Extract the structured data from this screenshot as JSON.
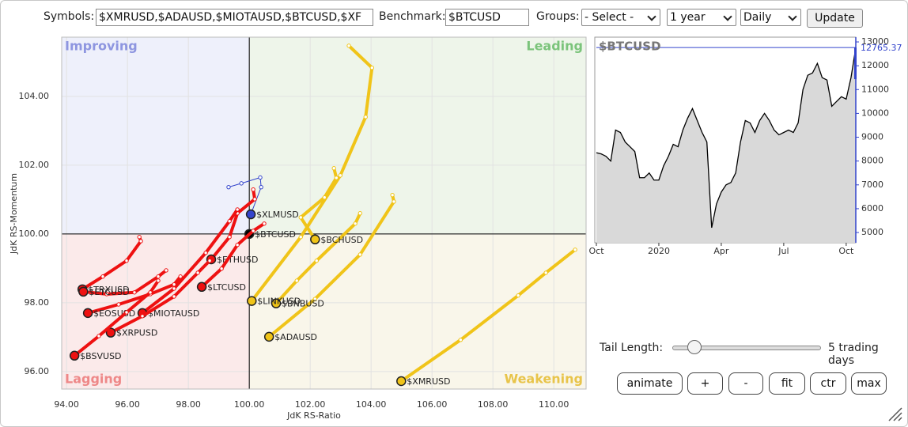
{
  "toolbar": {
    "symbols_label": "Symbols:",
    "symbols": "$XMRUSD,$ADAUSD,$MIOTAUSD,$BTCUSD,$XF",
    "benchmark_label": "Benchmark:",
    "benchmark": "$BTCUSD",
    "groups_label": "Groups:",
    "groups": "- Select -",
    "period": "1 year",
    "interval": "Daily",
    "update": "Update"
  },
  "chart_data": [
    {
      "type": "scatter",
      "x_label": "JdK RS-Ratio",
      "y_label": "JdK RS-Momentum",
      "quadrants": {
        "improving": "Improving",
        "leading": "Leading",
        "lagging": "Lagging",
        "weakening": "Weakening"
      },
      "xlim": [
        93.84,
        111.06
      ],
      "ylim": [
        95.49,
        105.72
      ],
      "xticks": [
        {
          "value": 94,
          "label": "94.00"
        },
        {
          "value": 96,
          "label": "96.00"
        },
        {
          "value": 98,
          "label": "98.00"
        },
        {
          "value": 100,
          "label": "100.00"
        },
        {
          "value": 102,
          "label": "102.00"
        },
        {
          "value": 104,
          "label": "104.00"
        },
        {
          "value": 106,
          "label": "106.00"
        },
        {
          "value": 108,
          "label": "108.00"
        },
        {
          "value": 110,
          "label": "110.00"
        }
      ],
      "yticks": [
        {
          "value": 96,
          "label": "96.00"
        },
        {
          "value": 98,
          "label": "98.00"
        },
        {
          "value": 100,
          "label": "100.00"
        },
        {
          "value": 102,
          "label": "102.00"
        },
        {
          "value": 104,
          "label": "104.00"
        }
      ],
      "grid": true,
      "crosshair": {
        "x": 100,
        "y": 100
      },
      "series": [
        {
          "name": "$XMRUSD",
          "color": "#f0c419",
          "x": [
            110.7,
            109.74,
            108.83,
            106.94,
            104.99
          ],
          "values": [
            99.54,
            98.87,
            98.21,
            96.92,
            95.72
          ]
        },
        {
          "name": "$ADAUSD",
          "color": "#f0c419",
          "x": [
            104.7,
            104.75,
            103.64,
            102.16,
            100.65
          ],
          "values": [
            101.13,
            100.94,
            99.4,
            98.11,
            97.01
          ]
        },
        {
          "name": "$BNBUSD",
          "color": "#f0c419",
          "x": [
            103.64,
            103.48,
            102.21,
            101.56,
            100.88
          ],
          "values": [
            100.6,
            100.3,
            99.22,
            98.64,
            97.98
          ]
        },
        {
          "name": "$LINKUSD",
          "color": "#f0c419",
          "x": [
            103.27,
            104.03,
            103.82,
            102.99,
            101.69,
            100.08
          ],
          "values": [
            105.47,
            104.83,
            103.4,
            101.7,
            99.91,
            98.05
          ]
        },
        {
          "name": "$BCHUSD",
          "color": "#f0c419",
          "x": [
            102.78,
            102.86,
            102.47,
            101.69,
            102.16
          ],
          "values": [
            101.91,
            101.63,
            101.06,
            100.48,
            99.84
          ]
        },
        {
          "name": "$XLMUSD",
          "color": "#3344cc",
          "x": [
            99.32,
            99.74,
            100.36,
            100.39,
            100.05
          ],
          "values": [
            101.36,
            101.47,
            101.64,
            101.36,
            100.57
          ]
        },
        {
          "name": "$BTCUSD",
          "color": "#000000",
          "x": [
            100.0
          ],
          "values": [
            100.0
          ]
        },
        {
          "name": "$ETHUSD",
          "color": "#ee1111",
          "x": [
            100.13,
            100.18,
            99.61,
            99.35,
            98.75
          ],
          "values": [
            101.29,
            101.01,
            100.6,
            99.91,
            99.26
          ]
        },
        {
          "name": "$LTCUSD",
          "color": "#ee1111",
          "x": [
            100.49,
            100.13,
            99.61,
            99.09,
            98.44
          ],
          "values": [
            100.3,
            100.09,
            99.68,
            98.99,
            98.46
          ]
        },
        {
          "name": "$MIOTAUSD",
          "color": "#ee1111",
          "x": [
            99.61,
            99.35,
            98.57,
            97.53,
            96.49
          ],
          "values": [
            100.71,
            100.37,
            99.45,
            98.41,
            97.7
          ]
        },
        {
          "name": "$EOSUSD",
          "color": "#ee1111",
          "x": [
            97.74,
            97.53,
            96.75,
            95.71,
            94.7
          ],
          "values": [
            98.76,
            98.53,
            98.25,
            97.95,
            97.7
          ]
        },
        {
          "name": "$XRPUSD",
          "color": "#ee1111",
          "x": [
            98.7,
            98.31,
            97.53,
            96.49,
            95.45
          ],
          "values": [
            99.22,
            98.87,
            98.18,
            97.61,
            97.13
          ]
        },
        {
          "name": "$BSVUSD",
          "color": "#ee1111",
          "x": [
            97.01,
            96.75,
            95.97,
            95.06,
            94.26
          ],
          "values": [
            98.64,
            98.3,
            97.72,
            97.03,
            96.46
          ]
        },
        {
          "name": "$TRXUSD",
          "color": "#ee1111",
          "x": [
            96.39,
            96.44,
            95.97,
            95.19,
            94.52
          ],
          "values": [
            99.91,
            99.79,
            99.22,
            98.76,
            98.39
          ]
        },
        {
          "name": "$ETCUSD",
          "color": "#ee1111",
          "x": [
            97.27,
            97.01,
            96.23,
            95.32,
            94.55
          ],
          "values": [
            98.94,
            98.76,
            98.3,
            98.25,
            98.32
          ]
        }
      ]
    },
    {
      "type": "line",
      "title": "$BTCUSD",
      "color": "#000000",
      "fill": "#d9d9d9",
      "last_color": "#3344cc",
      "categories": [
        "Oct",
        null,
        null,
        null,
        null,
        null,
        null,
        null,
        null,
        null,
        null,
        null,
        null,
        "2020",
        null,
        null,
        null,
        null,
        null,
        null,
        null,
        null,
        null,
        null,
        null,
        null,
        "Apr",
        null,
        null,
        null,
        null,
        null,
        null,
        null,
        null,
        null,
        null,
        null,
        null,
        "Jul",
        null,
        null,
        null,
        null,
        null,
        null,
        null,
        null,
        null,
        null,
        null,
        null,
        "Oct",
        null,
        null
      ],
      "values": [
        8350,
        8300,
        8200,
        8000,
        9300,
        9200,
        8800,
        8600,
        8400,
        7300,
        7300,
        7500,
        7200,
        7200,
        7800,
        8200,
        8700,
        8600,
        9300,
        9800,
        10200,
        9700,
        9200,
        8800,
        5200,
        6200,
        6700,
        7000,
        7100,
        7500,
        8800,
        9700,
        9600,
        9200,
        9700,
        10000,
        9700,
        9300,
        9100,
        9200,
        9300,
        9200,
        9600,
        11000,
        11600,
        11700,
        12100,
        11500,
        11400,
        10300,
        10500,
        10700,
        10600,
        11500,
        12765.37
      ],
      "ylim": [
        4570,
        13200
      ],
      "yticks": [
        5000,
        6000,
        7000,
        8000,
        9000,
        10000,
        11000,
        12000,
        13000
      ]
    }
  ],
  "controls": {
    "tail_label": "Tail Length:",
    "tail_value": "5 trading days",
    "buttons": [
      "animate",
      "+",
      "-",
      "fit",
      "ctr",
      "max"
    ]
  }
}
